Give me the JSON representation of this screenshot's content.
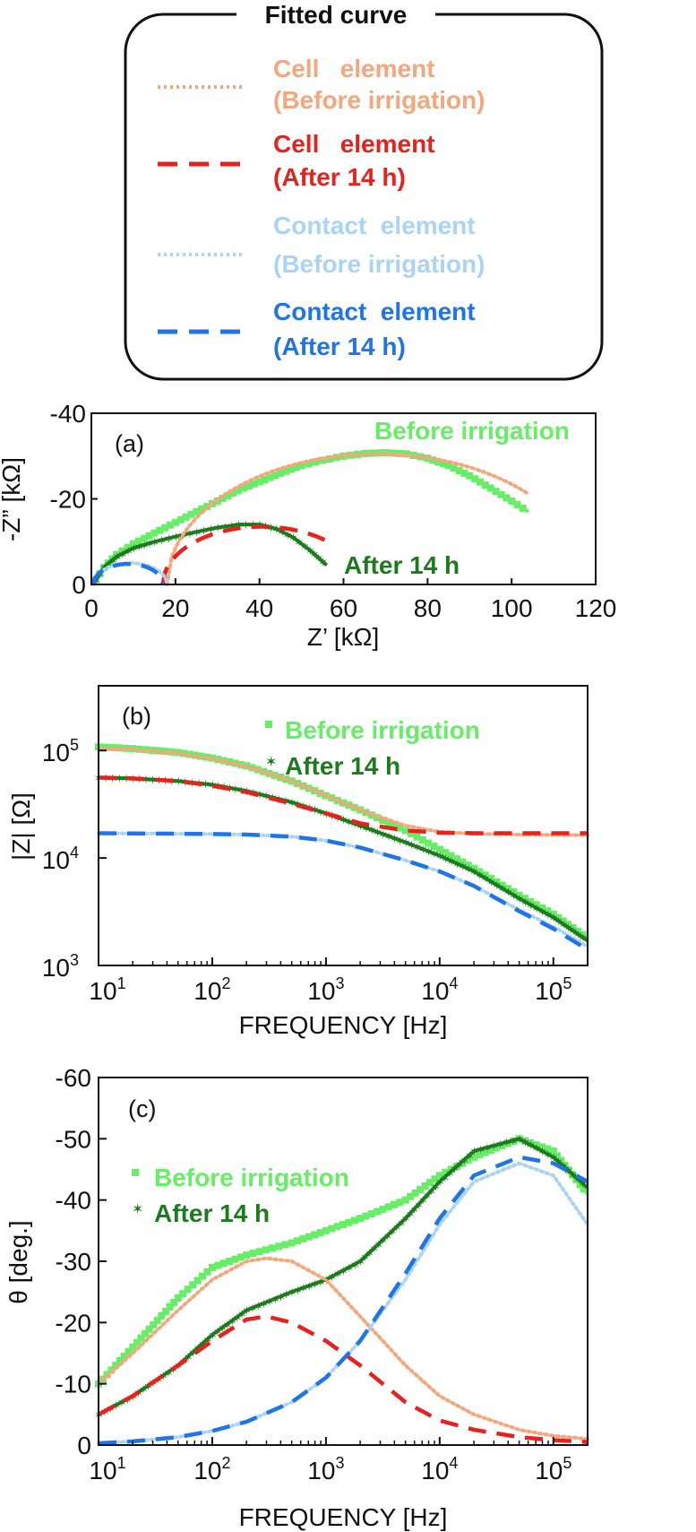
{
  "colors": {
    "before_measured": "#66ee66",
    "after_measured": "#1e7a1e",
    "cell_before_fit": "#f4a67c",
    "cell_after_fit": "#e8211c",
    "contact_before_fit": "#a9d4f5",
    "contact_after_fit": "#1e74e8"
  },
  "legend": {
    "title": "Fitted  curve",
    "items": [
      {
        "line1": "Cell   element",
        "line2": "(Before irrigation)",
        "color": "cell_before_fit",
        "style": "dotted"
      },
      {
        "line1": "Cell   element",
        "line2": "(After 14 h)",
        "color": "cell_after_fit",
        "style": "dashed"
      },
      {
        "line1": "Contact  element",
        "line2": "(Before irrigation)",
        "color": "contact_before_fit",
        "style": "dotted"
      },
      {
        "line1": "Contact  element",
        "line2": "(After 14 h)",
        "color": "contact_after_fit",
        "style": "dashed"
      }
    ]
  },
  "chart_data": [
    {
      "id": "a",
      "panel_label": "(a)",
      "type": "scatter",
      "title": "",
      "xlabel": "Z’ [kΩ]",
      "ylabel": "-Z” [kΩ]",
      "xlim": [
        0,
        120
      ],
      "ylim": [
        0,
        -40
      ],
      "xticks": [
        0,
        20,
        40,
        60,
        80,
        100,
        120
      ],
      "xtick_labels": [
        "0",
        "20",
        "40",
        "60",
        "80",
        "100",
        "120"
      ],
      "yticks": [
        0,
        -20,
        -40
      ],
      "ytick_labels": [
        "0",
        "-20",
        "-40"
      ],
      "series_labels": [
        "Before irrigation",
        "After 14 h"
      ],
      "series": [
        {
          "name": "Before irrigation",
          "kind": "measured",
          "marker": "square",
          "color": "before_measured",
          "x": [
            1,
            3,
            6,
            10,
            15,
            20,
            25,
            30,
            35,
            40,
            45,
            50,
            55,
            60,
            65,
            70,
            75,
            80,
            85,
            90,
            95,
            100,
            104
          ],
          "y": [
            -1,
            -4,
            -7,
            -9.5,
            -12,
            -14.5,
            -17,
            -19.5,
            -22,
            -24,
            -26,
            -27.8,
            -29,
            -30,
            -30.6,
            -30.8,
            -30.5,
            -29.5,
            -27.8,
            -25.4,
            -22.5,
            -19.5,
            -17
          ]
        },
        {
          "name": "After 14 h",
          "kind": "measured",
          "marker": "star",
          "color": "after_measured",
          "x": [
            1,
            3,
            6,
            10,
            15,
            20,
            25,
            30,
            35,
            40,
            44,
            48,
            52,
            56
          ],
          "y": [
            -1,
            -4,
            -6.5,
            -8.5,
            -10,
            -11.2,
            -12.3,
            -13.3,
            -14,
            -14,
            -13,
            -11,
            -8,
            -4.5
          ]
        },
        {
          "name": "Cell element (Before irrigation)",
          "kind": "fit",
          "style": "dotted",
          "color": "cell_before_fit",
          "semicircle": {
            "x_start": 18,
            "x_end": 118,
            "peak": -30.5,
            "x_max": 104
          }
        },
        {
          "name": "Cell element (After 14 h)",
          "kind": "fit",
          "style": "dashed",
          "color": "cell_after_fit",
          "semicircle": {
            "x_start": 17,
            "x_end": 64,
            "peak": -13.5,
            "x_max": 56
          }
        },
        {
          "name": "Contact element (Before irrigation)",
          "kind": "fit",
          "style": "dotted",
          "color": "contact_before_fit",
          "semicircle": {
            "x_start": 0.5,
            "x_end": 18,
            "peak": -5,
            "x_max": 18
          }
        },
        {
          "name": "Contact element (After 14 h)",
          "kind": "fit",
          "style": "dashed",
          "color": "contact_after_fit",
          "semicircle": {
            "x_start": 0.5,
            "x_end": 17,
            "peak": -4.8,
            "x_max": 17
          }
        }
      ]
    },
    {
      "id": "b",
      "panel_label": "(b)",
      "type": "line",
      "xscale": "log",
      "yscale": "log",
      "title": "",
      "xlabel": "FREQUENCY  [Hz]",
      "ylabel": "|Z| [Ω]",
      "xlim": [
        10,
        200000
      ],
      "ylim": [
        1000,
        400000
      ],
      "xtick_labels": [
        {
          "base": "10",
          "exp": "1"
        },
        {
          "base": "10",
          "exp": "2"
        },
        {
          "base": "10",
          "exp": "3"
        },
        {
          "base": "10",
          "exp": "4"
        },
        {
          "base": "10",
          "exp": "5"
        }
      ],
      "ytick_labels": [
        {
          "base": "10",
          "exp": "3"
        },
        {
          "base": "10",
          "exp": "4"
        },
        {
          "base": "10",
          "exp": "5"
        }
      ],
      "series_labels": [
        "Before irrigation",
        "After 14 h"
      ],
      "series": [
        {
          "name": "Before irrigation",
          "kind": "measured",
          "marker": "square",
          "color": "before_measured",
          "x": [
            10,
            20,
            50,
            100,
            200,
            500,
            1000,
            2000,
            5000,
            10000,
            20000,
            50000,
            100000,
            200000
          ],
          "y": [
            108000,
            104000,
            96000,
            85000,
            72000,
            52000,
            38000,
            28000,
            18000,
            12000,
            8000,
            4500,
            3000,
            1800
          ]
        },
        {
          "name": "After 14 h",
          "kind": "measured",
          "marker": "star",
          "color": "after_measured",
          "x": [
            10,
            20,
            50,
            100,
            200,
            500,
            1000,
            2000,
            5000,
            10000,
            20000,
            50000,
            100000,
            200000
          ],
          "y": [
            56000,
            55000,
            52000,
            48000,
            42000,
            33000,
            26000,
            20000,
            14000,
            10500,
            7500,
            4200,
            2800,
            1700
          ]
        },
        {
          "name": "Cell element (Before irrigation)",
          "kind": "fit",
          "style": "dotted",
          "color": "cell_before_fit",
          "x": [
            10,
            20,
            50,
            100,
            200,
            500,
            1000,
            2000,
            5000,
            10000,
            20000,
            50000,
            100000,
            200000
          ],
          "y": [
            105000,
            102000,
            94000,
            84000,
            71000,
            52000,
            38000,
            28000,
            20000,
            17500,
            16800,
            16500,
            16400,
            16300
          ]
        },
        {
          "name": "Cell element (After 14 h)",
          "kind": "fit",
          "style": "dashed",
          "color": "cell_after_fit",
          "x": [
            10,
            20,
            50,
            100,
            200,
            500,
            1000,
            2000,
            5000,
            10000,
            20000,
            50000,
            100000,
            200000
          ],
          "y": [
            56000,
            55000,
            52000,
            47000,
            41000,
            32000,
            26000,
            21000,
            18000,
            17200,
            17000,
            17000,
            17000,
            17000
          ]
        },
        {
          "name": "Contact element (Before irrigation)",
          "kind": "fit",
          "style": "dotted",
          "color": "contact_before_fit",
          "x": [
            10,
            20,
            50,
            100,
            200,
            500,
            1000,
            2000,
            5000,
            10000,
            20000,
            50000,
            100000,
            200000
          ],
          "y": [
            17000,
            16900,
            16800,
            16700,
            16500,
            15800,
            14500,
            12500,
            9500,
            7500,
            5500,
            3300,
            2300,
            1500
          ]
        },
        {
          "name": "Contact element (After 14 h)",
          "kind": "fit",
          "style": "dashed",
          "color": "contact_after_fit",
          "x": [
            10,
            20,
            50,
            100,
            200,
            500,
            1000,
            2000,
            5000,
            10000,
            20000,
            50000,
            100000,
            200000
          ],
          "y": [
            17000,
            16900,
            16800,
            16700,
            16500,
            15800,
            14500,
            12500,
            9500,
            7500,
            5500,
            3200,
            2200,
            1400
          ]
        }
      ]
    },
    {
      "id": "c",
      "panel_label": "(c)",
      "type": "line",
      "xscale": "log",
      "title": "",
      "xlabel": "FREQUENCY  [Hz]",
      "ylabel": "θ [deg.]",
      "xlim": [
        10,
        200000
      ],
      "ylim": [
        0,
        -60
      ],
      "yticks": [
        0,
        -10,
        -20,
        -30,
        -40,
        -50,
        -60
      ],
      "ytick_labels": [
        "0",
        "-10",
        "-20",
        "-30",
        "-40",
        "-50",
        "-60"
      ],
      "xtick_labels": [
        {
          "base": "10",
          "exp": "1"
        },
        {
          "base": "10",
          "exp": "2"
        },
        {
          "base": "10",
          "exp": "3"
        },
        {
          "base": "10",
          "exp": "4"
        },
        {
          "base": "10",
          "exp": "5"
        }
      ],
      "series_labels": [
        "Before irrigation",
        "After 14 h"
      ],
      "series": [
        {
          "name": "Before irrigation",
          "kind": "measured",
          "marker": "square",
          "color": "before_measured",
          "x": [
            10,
            20,
            50,
            100,
            200,
            500,
            1000,
            2000,
            5000,
            10000,
            20000,
            50000,
            100000,
            200000
          ],
          "y": [
            -10,
            -16,
            -24,
            -29,
            -31,
            -33,
            -35,
            -37,
            -40,
            -44,
            -47,
            -50,
            -48,
            -41
          ]
        },
        {
          "name": "After 14 h",
          "kind": "measured",
          "marker": "star",
          "color": "after_measured",
          "x": [
            10,
            20,
            50,
            100,
            200,
            500,
            1000,
            2000,
            5000,
            10000,
            20000,
            50000,
            100000,
            200000
          ],
          "y": [
            -5,
            -8,
            -13,
            -18,
            -22,
            -25,
            -27,
            -30,
            -37,
            -43,
            -48,
            -50,
            -47,
            -42
          ]
        },
        {
          "name": "Cell element (Before irrigation)",
          "kind": "fit",
          "style": "dotted",
          "color": "cell_before_fit",
          "x": [
            10,
            20,
            50,
            100,
            200,
            300,
            500,
            1000,
            2000,
            5000,
            10000,
            20000,
            50000,
            100000,
            200000
          ],
          "y": [
            -10,
            -15,
            -22,
            -27,
            -30,
            -30.5,
            -30,
            -27,
            -21,
            -13,
            -8,
            -5,
            -2.5,
            -1.5,
            -1
          ]
        },
        {
          "name": "Cell element (After 14 h)",
          "kind": "fit",
          "style": "dashed",
          "color": "cell_after_fit",
          "x": [
            10,
            20,
            50,
            100,
            200,
            300,
            500,
            1000,
            2000,
            5000,
            10000,
            20000,
            50000,
            100000,
            200000
          ],
          "y": [
            -5,
            -8,
            -13,
            -17,
            -20.5,
            -21,
            -20,
            -17,
            -13,
            -7,
            -4,
            -2.5,
            -1.3,
            -0.8,
            -0.5
          ]
        },
        {
          "name": "Contact element (Before irrigation)",
          "kind": "fit",
          "style": "dotted",
          "color": "contact_before_fit",
          "x": [
            10,
            20,
            50,
            100,
            200,
            500,
            1000,
            2000,
            5000,
            10000,
            20000,
            50000,
            100000,
            200000
          ],
          "y": [
            -0.3,
            -0.6,
            -1.3,
            -2.3,
            -3.8,
            -7,
            -11,
            -17,
            -27,
            -36,
            -43,
            -46,
            -44,
            -36
          ]
        },
        {
          "name": "Contact element (After 14 h)",
          "kind": "fit",
          "style": "dashed",
          "color": "contact_after_fit",
          "x": [
            10,
            20,
            50,
            100,
            200,
            500,
            1000,
            2000,
            5000,
            10000,
            20000,
            50000,
            100000,
            200000
          ],
          "y": [
            -0.3,
            -0.6,
            -1.3,
            -2.3,
            -3.8,
            -7,
            -11,
            -17,
            -28,
            -37,
            -44,
            -47,
            -46,
            -43
          ]
        }
      ]
    }
  ]
}
